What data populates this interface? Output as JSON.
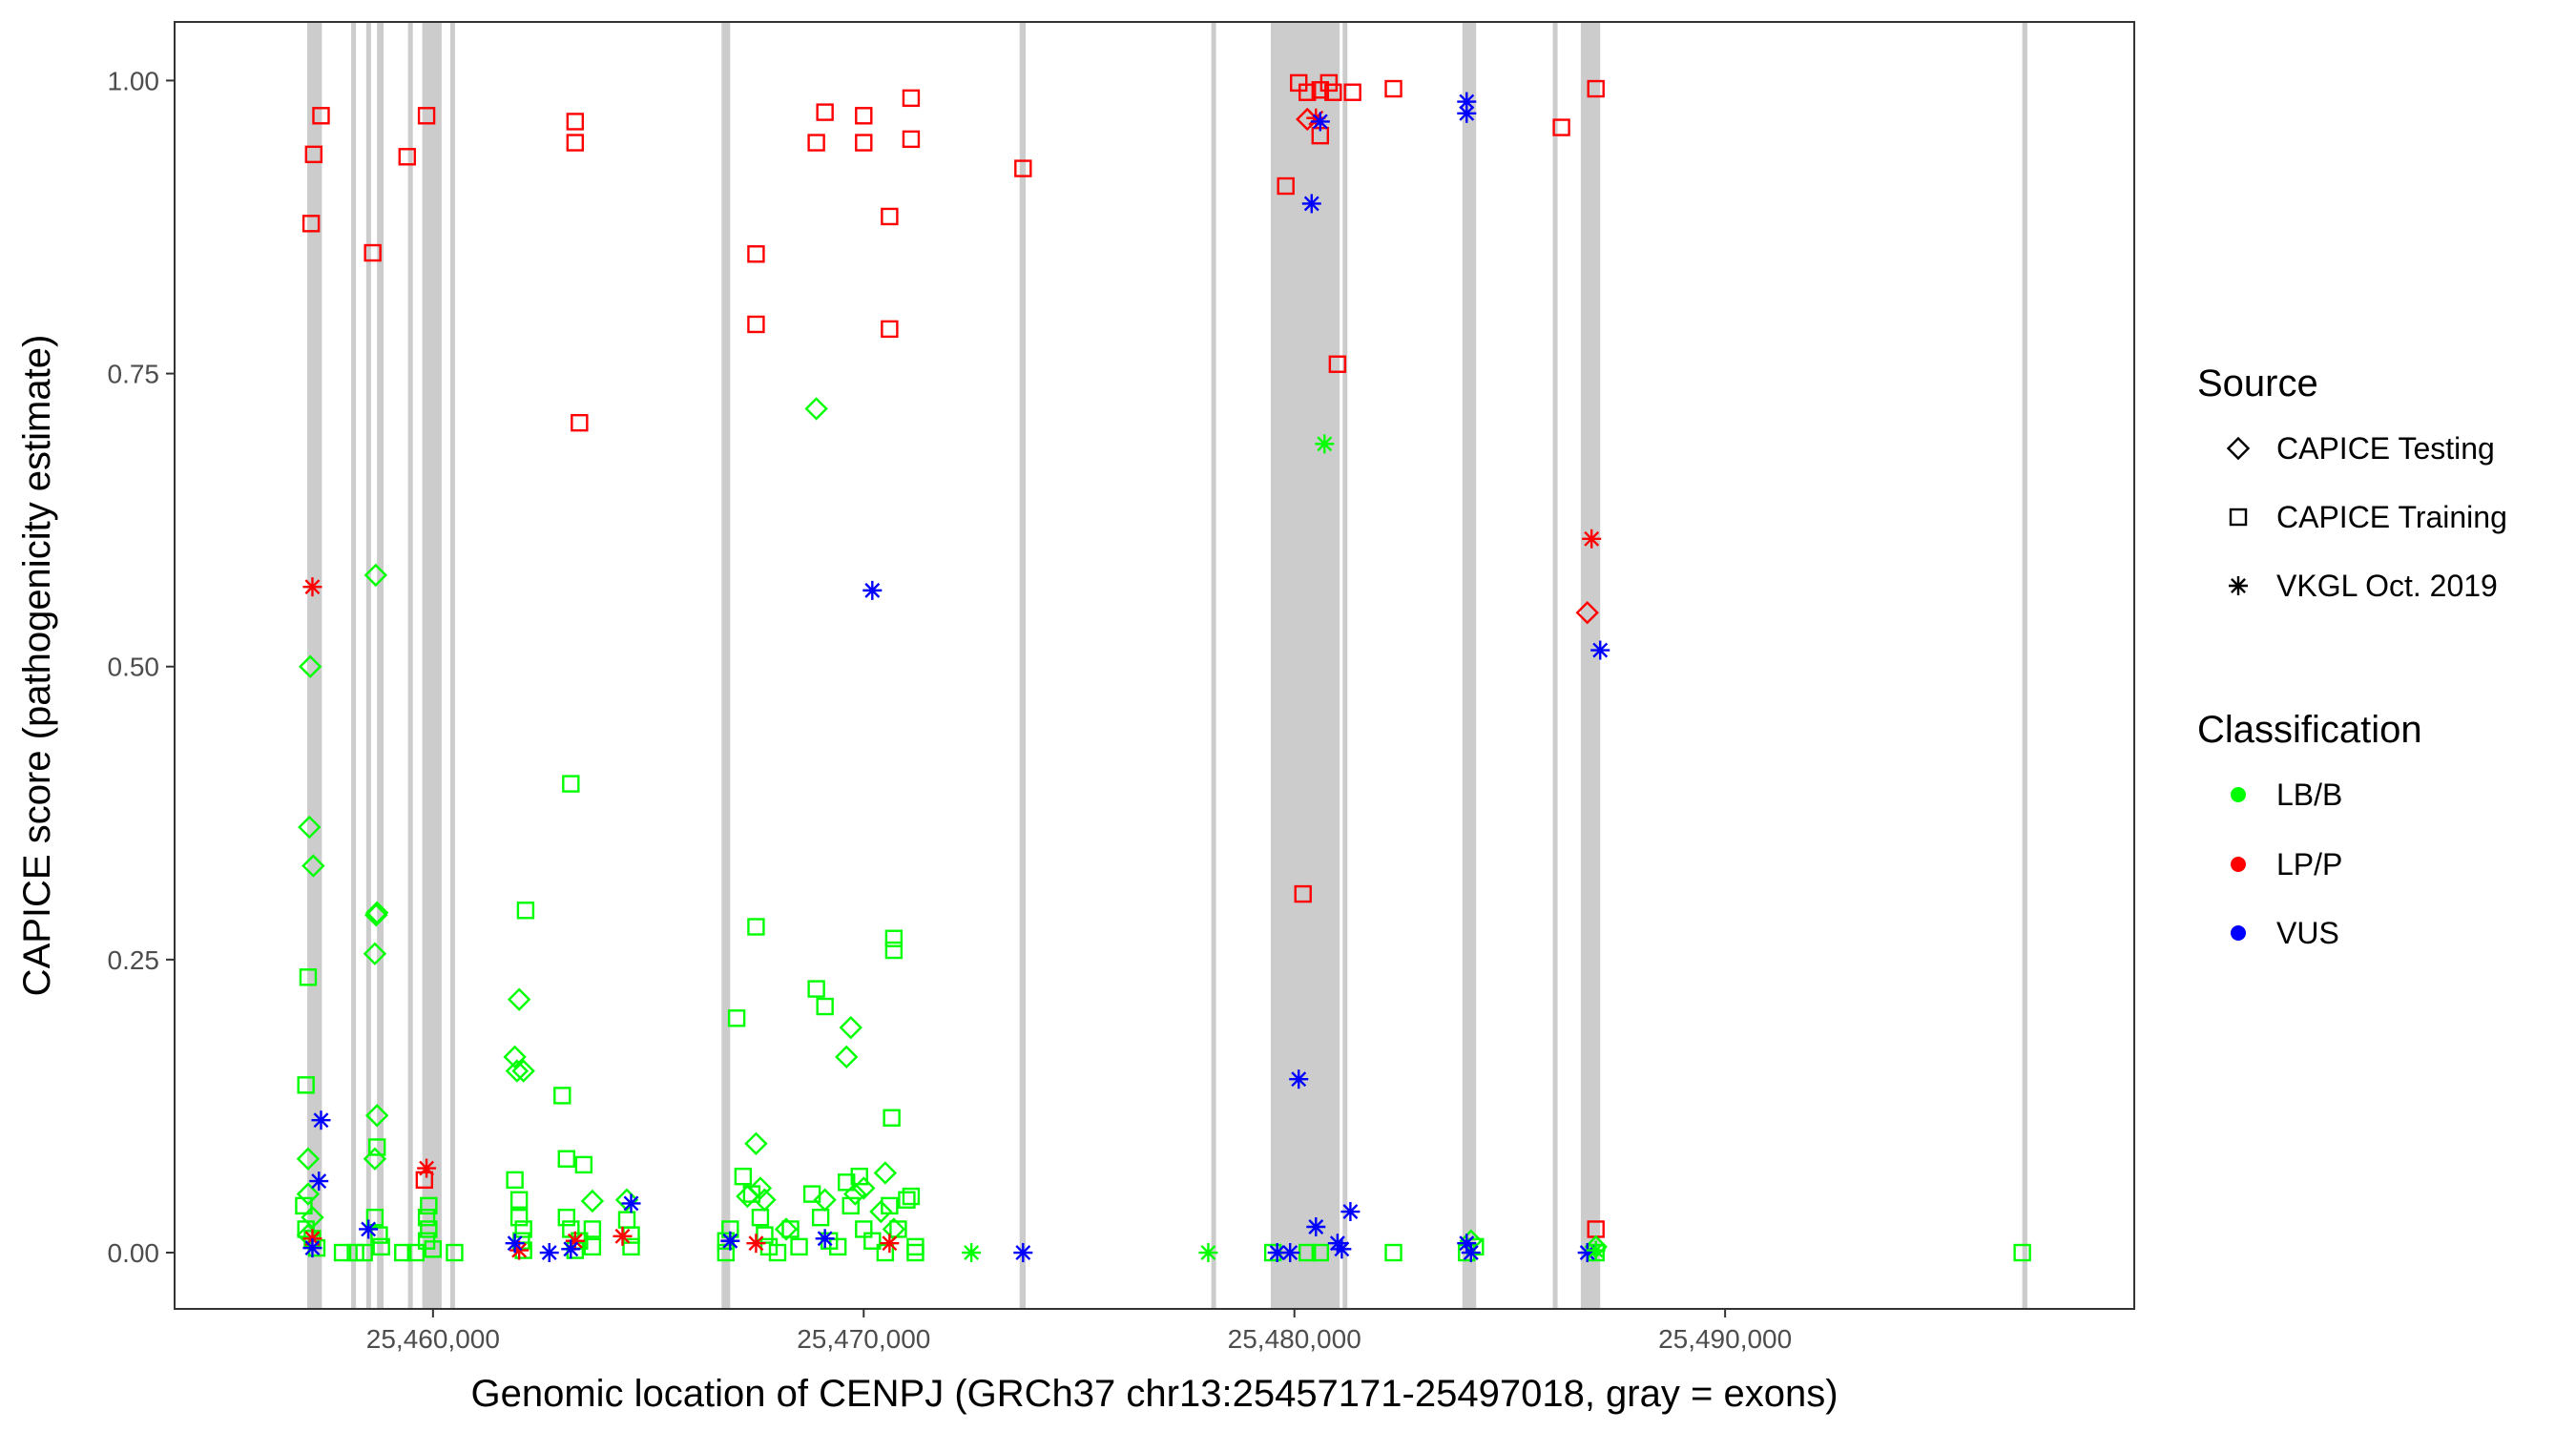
{
  "chart_data": {
    "type": "scatter",
    "xlabel": "Genomic location of CENPJ (GRCh37 chr13:25457171-25497018, gray = exons)",
    "ylabel": "CAPICE score (pathogenicity estimate)",
    "xlim": [
      25454000,
      25499500
    ],
    "ylim": [
      -0.048,
      1.05
    ],
    "x_ticks": [
      25460000,
      25470000,
      25480000,
      25490000
    ],
    "x_tick_labels": [
      "25,460,000",
      "25,470,000",
      "25,480,000",
      "25,490,000"
    ],
    "y_ticks": [
      0,
      0.25,
      0.5,
      0.75,
      1.0
    ],
    "y_tick_labels": [
      "0.00",
      "0.25",
      "0.50",
      "0.75",
      "1.00"
    ],
    "exon_color": "#cccccc",
    "exons": [
      [
        25457080,
        25457420
      ],
      [
        25458100,
        25458200
      ],
      [
        25458450,
        25458560
      ],
      [
        25458700,
        25458850
      ],
      [
        25459420,
        25459520
      ],
      [
        25459750,
        25460200
      ],
      [
        25460400,
        25460500
      ],
      [
        25466700,
        25466900
      ],
      [
        25473620,
        25473760
      ],
      [
        25478070,
        25478170
      ],
      [
        25479450,
        25481050
      ],
      [
        25481120,
        25481220
      ],
      [
        25483900,
        25484220
      ],
      [
        25486000,
        25486100
      ],
      [
        25486650,
        25487100
      ],
      [
        25496900,
        25497018
      ]
    ],
    "legend": {
      "source": {
        "title": "Source",
        "entries": [
          {
            "label": "CAPICE Testing",
            "shape": "diamond"
          },
          {
            "label": "CAPICE Training",
            "shape": "square"
          },
          {
            "label": "VKGL Oct. 2019",
            "shape": "star"
          }
        ]
      },
      "classification": {
        "title": "Classification",
        "entries": [
          {
            "label": "LB/B",
            "color": "#00ff00"
          },
          {
            "label": "LP/P",
            "color": "#ff0000"
          },
          {
            "label": "VUS",
            "color": "#0000ff"
          }
        ]
      }
    },
    "colors": {
      "LB/B": "#00ff00",
      "LP/P": "#ff0000",
      "VUS": "#0000ff"
    },
    "series": [
      {
        "name": "CAPICE Training / LP/P",
        "shape": "square",
        "class": "LP/P",
        "points": [
          [
            25457170,
            0.878
          ],
          [
            25457230,
            0.937
          ],
          [
            25457400,
            0.97
          ],
          [
            25458600,
            0.853
          ],
          [
            25459400,
            0.935
          ],
          [
            25459850,
            0.97
          ],
          [
            25459800,
            0.062
          ],
          [
            25463300,
            0.965
          ],
          [
            25463300,
            0.947
          ],
          [
            25463400,
            0.708
          ],
          [
            25467500,
            0.852
          ],
          [
            25467500,
            0.792
          ],
          [
            25468900,
            0.947
          ],
          [
            25469100,
            0.973
          ],
          [
            25470000,
            0.97
          ],
          [
            25470000,
            0.947
          ],
          [
            25470600,
            0.884
          ],
          [
            25470600,
            0.788
          ],
          [
            25471100,
            0.985
          ],
          [
            25471100,
            0.95
          ],
          [
            25473700,
            0.925
          ],
          [
            25479800,
            0.91
          ],
          [
            25480100,
            0.998
          ],
          [
            25480300,
            0.99
          ],
          [
            25480600,
            0.992
          ],
          [
            25480800,
            0.998
          ],
          [
            25480900,
            0.99
          ],
          [
            25481350,
            0.99
          ],
          [
            25481000,
            0.758
          ],
          [
            25482300,
            0.993
          ],
          [
            25480600,
            0.953
          ],
          [
            25480200,
            0.306
          ],
          [
            25486200,
            0.96
          ],
          [
            25487000,
            0.993
          ],
          [
            25487000,
            0.02
          ]
        ]
      },
      {
        "name": "CAPICE Training / LB/B",
        "shape": "square",
        "class": "LB/B",
        "points": [
          [
            25457100,
            0.235
          ],
          [
            25457050,
            0.143
          ],
          [
            25457000,
            0.04
          ],
          [
            25457050,
            0.02
          ],
          [
            25457200,
            0.012
          ],
          [
            25457300,
            0.004
          ],
          [
            25457900,
            0.0
          ],
          [
            25458200,
            0.0
          ],
          [
            25458400,
            0.0
          ],
          [
            25458700,
            0.09
          ],
          [
            25458650,
            0.03
          ],
          [
            25458750,
            0.015
          ],
          [
            25458800,
            0.005
          ],
          [
            25459300,
            0.0
          ],
          [
            25459600,
            0.0
          ],
          [
            25459900,
            0.04
          ],
          [
            25459850,
            0.03
          ],
          [
            25459900,
            0.02
          ],
          [
            25459850,
            0.01
          ],
          [
            25460000,
            0.003
          ],
          [
            25460500,
            0.0
          ],
          [
            25461900,
            0.062
          ],
          [
            25462000,
            0.045
          ],
          [
            25462000,
            0.03
          ],
          [
            25462100,
            0.02
          ],
          [
            25462050,
            0.01
          ],
          [
            25462100,
            0.002
          ],
          [
            25462150,
            0.292
          ],
          [
            25463000,
            0.134
          ],
          [
            25463100,
            0.08
          ],
          [
            25463200,
            0.4
          ],
          [
            25463500,
            0.075
          ],
          [
            25463100,
            0.03
          ],
          [
            25463200,
            0.02
          ],
          [
            25463400,
            0.01
          ],
          [
            25463300,
            0.002
          ],
          [
            25463700,
            0.02
          ],
          [
            25463700,
            0.005
          ],
          [
            25464500,
            0.028
          ],
          [
            25464600,
            0.015
          ],
          [
            25464600,
            0.005
          ],
          [
            25466800,
            0.0
          ],
          [
            25466900,
            0.02
          ],
          [
            25466800,
            0.01
          ],
          [
            25467050,
            0.2
          ],
          [
            25467200,
            0.065
          ],
          [
            25467400,
            0.05
          ],
          [
            25467500,
            0.278
          ],
          [
            25467600,
            0.03
          ],
          [
            25467700,
            0.015
          ],
          [
            25467800,
            0.005
          ],
          [
            25468000,
            0.0
          ],
          [
            25468300,
            0.02
          ],
          [
            25468500,
            0.005
          ],
          [
            25468900,
            0.225
          ],
          [
            25469100,
            0.21
          ],
          [
            25468800,
            0.05
          ],
          [
            25469000,
            0.03
          ],
          [
            25469200,
            0.01
          ],
          [
            25469400,
            0.005
          ],
          [
            25469600,
            0.06
          ],
          [
            25469700,
            0.04
          ],
          [
            25469900,
            0.065
          ],
          [
            25470000,
            0.02
          ],
          [
            25470200,
            0.01
          ],
          [
            25470500,
            0.0
          ],
          [
            25470700,
            0.268
          ],
          [
            25470700,
            0.258
          ],
          [
            25470650,
            0.115
          ],
          [
            25470600,
            0.04
          ],
          [
            25470800,
            0.02
          ],
          [
            25471000,
            0.045
          ],
          [
            25471100,
            0.048
          ],
          [
            25471200,
            0.005
          ],
          [
            25471200,
            0.0
          ],
          [
            25479500,
            0.0
          ],
          [
            25480300,
            0.0
          ],
          [
            25480600,
            0.0
          ],
          [
            25482300,
            0.0
          ],
          [
            25484000,
            0.0
          ],
          [
            25484200,
            0.005
          ],
          [
            25487000,
            0.0
          ],
          [
            25496900,
            0.0
          ]
        ]
      },
      {
        "name": "CAPICE Testing / LB/B",
        "shape": "diamond",
        "class": "LB/B",
        "points": [
          [
            25457150,
            0.5
          ],
          [
            25457130,
            0.363
          ],
          [
            25457220,
            0.33
          ],
          [
            25457100,
            0.08
          ],
          [
            25457100,
            0.05
          ],
          [
            25457200,
            0.03
          ],
          [
            25457100,
            0.015
          ],
          [
            25458670,
            0.578
          ],
          [
            25458700,
            0.29
          ],
          [
            25458680,
            0.288
          ],
          [
            25458650,
            0.255
          ],
          [
            25458700,
            0.117
          ],
          [
            25458650,
            0.08
          ],
          [
            25462000,
            0.216
          ],
          [
            25461900,
            0.167
          ],
          [
            25461950,
            0.155
          ],
          [
            25462100,
            0.155
          ],
          [
            25463700,
            0.044
          ],
          [
            25464500,
            0.045
          ],
          [
            25467300,
            0.048
          ],
          [
            25467500,
            0.093
          ],
          [
            25467600,
            0.055
          ],
          [
            25467700,
            0.045
          ],
          [
            25468200,
            0.02
          ],
          [
            25468900,
            0.72
          ],
          [
            25469100,
            0.045
          ],
          [
            25469700,
            0.192
          ],
          [
            25469600,
            0.167
          ],
          [
            25469800,
            0.05
          ],
          [
            25470500,
            0.068
          ],
          [
            25470000,
            0.055
          ],
          [
            25470400,
            0.035
          ],
          [
            25470700,
            0.02
          ],
          [
            25484100,
            0.01
          ],
          [
            25487000,
            0.005
          ]
        ]
      },
      {
        "name": "CAPICE Testing / LP/P",
        "shape": "diamond",
        "class": "LP/P",
        "points": [
          [
            25480300,
            0.967
          ],
          [
            25486800,
            0.546
          ]
        ]
      },
      {
        "name": "VKGL Oct. 2019 / LP/P",
        "shape": "star",
        "class": "LP/P",
        "points": [
          [
            25457200,
            0.568
          ],
          [
            25457200,
            0.012
          ],
          [
            25459850,
            0.072
          ],
          [
            25462000,
            0.002
          ],
          [
            25463300,
            0.01
          ],
          [
            25464400,
            0.014
          ],
          [
            25467500,
            0.008
          ],
          [
            25470600,
            0.008
          ],
          [
            25480500,
            0.968
          ],
          [
            25486900,
            0.609
          ]
        ]
      },
      {
        "name": "VKGL Oct. 2019 / VUS",
        "shape": "star",
        "class": "VUS",
        "points": [
          [
            25457400,
            0.113
          ],
          [
            25457350,
            0.061
          ],
          [
            25457200,
            0.004
          ],
          [
            25458500,
            0.02
          ],
          [
            25461900,
            0.008
          ],
          [
            25462700,
            0.0
          ],
          [
            25463200,
            0.003
          ],
          [
            25464600,
            0.042
          ],
          [
            25466900,
            0.01
          ],
          [
            25469100,
            0.012
          ],
          [
            25470200,
            0.565
          ],
          [
            25473700,
            0.0
          ],
          [
            25479600,
            0.0
          ],
          [
            25479900,
            0.0
          ],
          [
            25480100,
            0.148
          ],
          [
            25480400,
            0.895
          ],
          [
            25480500,
            0.022
          ],
          [
            25480600,
            0.965
          ],
          [
            25481000,
            0.008
          ],
          [
            25481100,
            0.003
          ],
          [
            25481300,
            0.035
          ],
          [
            25484000,
            0.982
          ],
          [
            25484000,
            0.972
          ],
          [
            25484000,
            0.008
          ],
          [
            25484100,
            0.0
          ],
          [
            25486800,
            0.0
          ],
          [
            25487100,
            0.514
          ]
        ]
      },
      {
        "name": "VKGL Oct. 2019 / LB/B",
        "shape": "star",
        "class": "LB/B",
        "points": [
          [
            25472500,
            0.0
          ],
          [
            25478000,
            0.0
          ],
          [
            25480700,
            0.69
          ],
          [
            25487000,
            0.002
          ]
        ]
      }
    ]
  }
}
